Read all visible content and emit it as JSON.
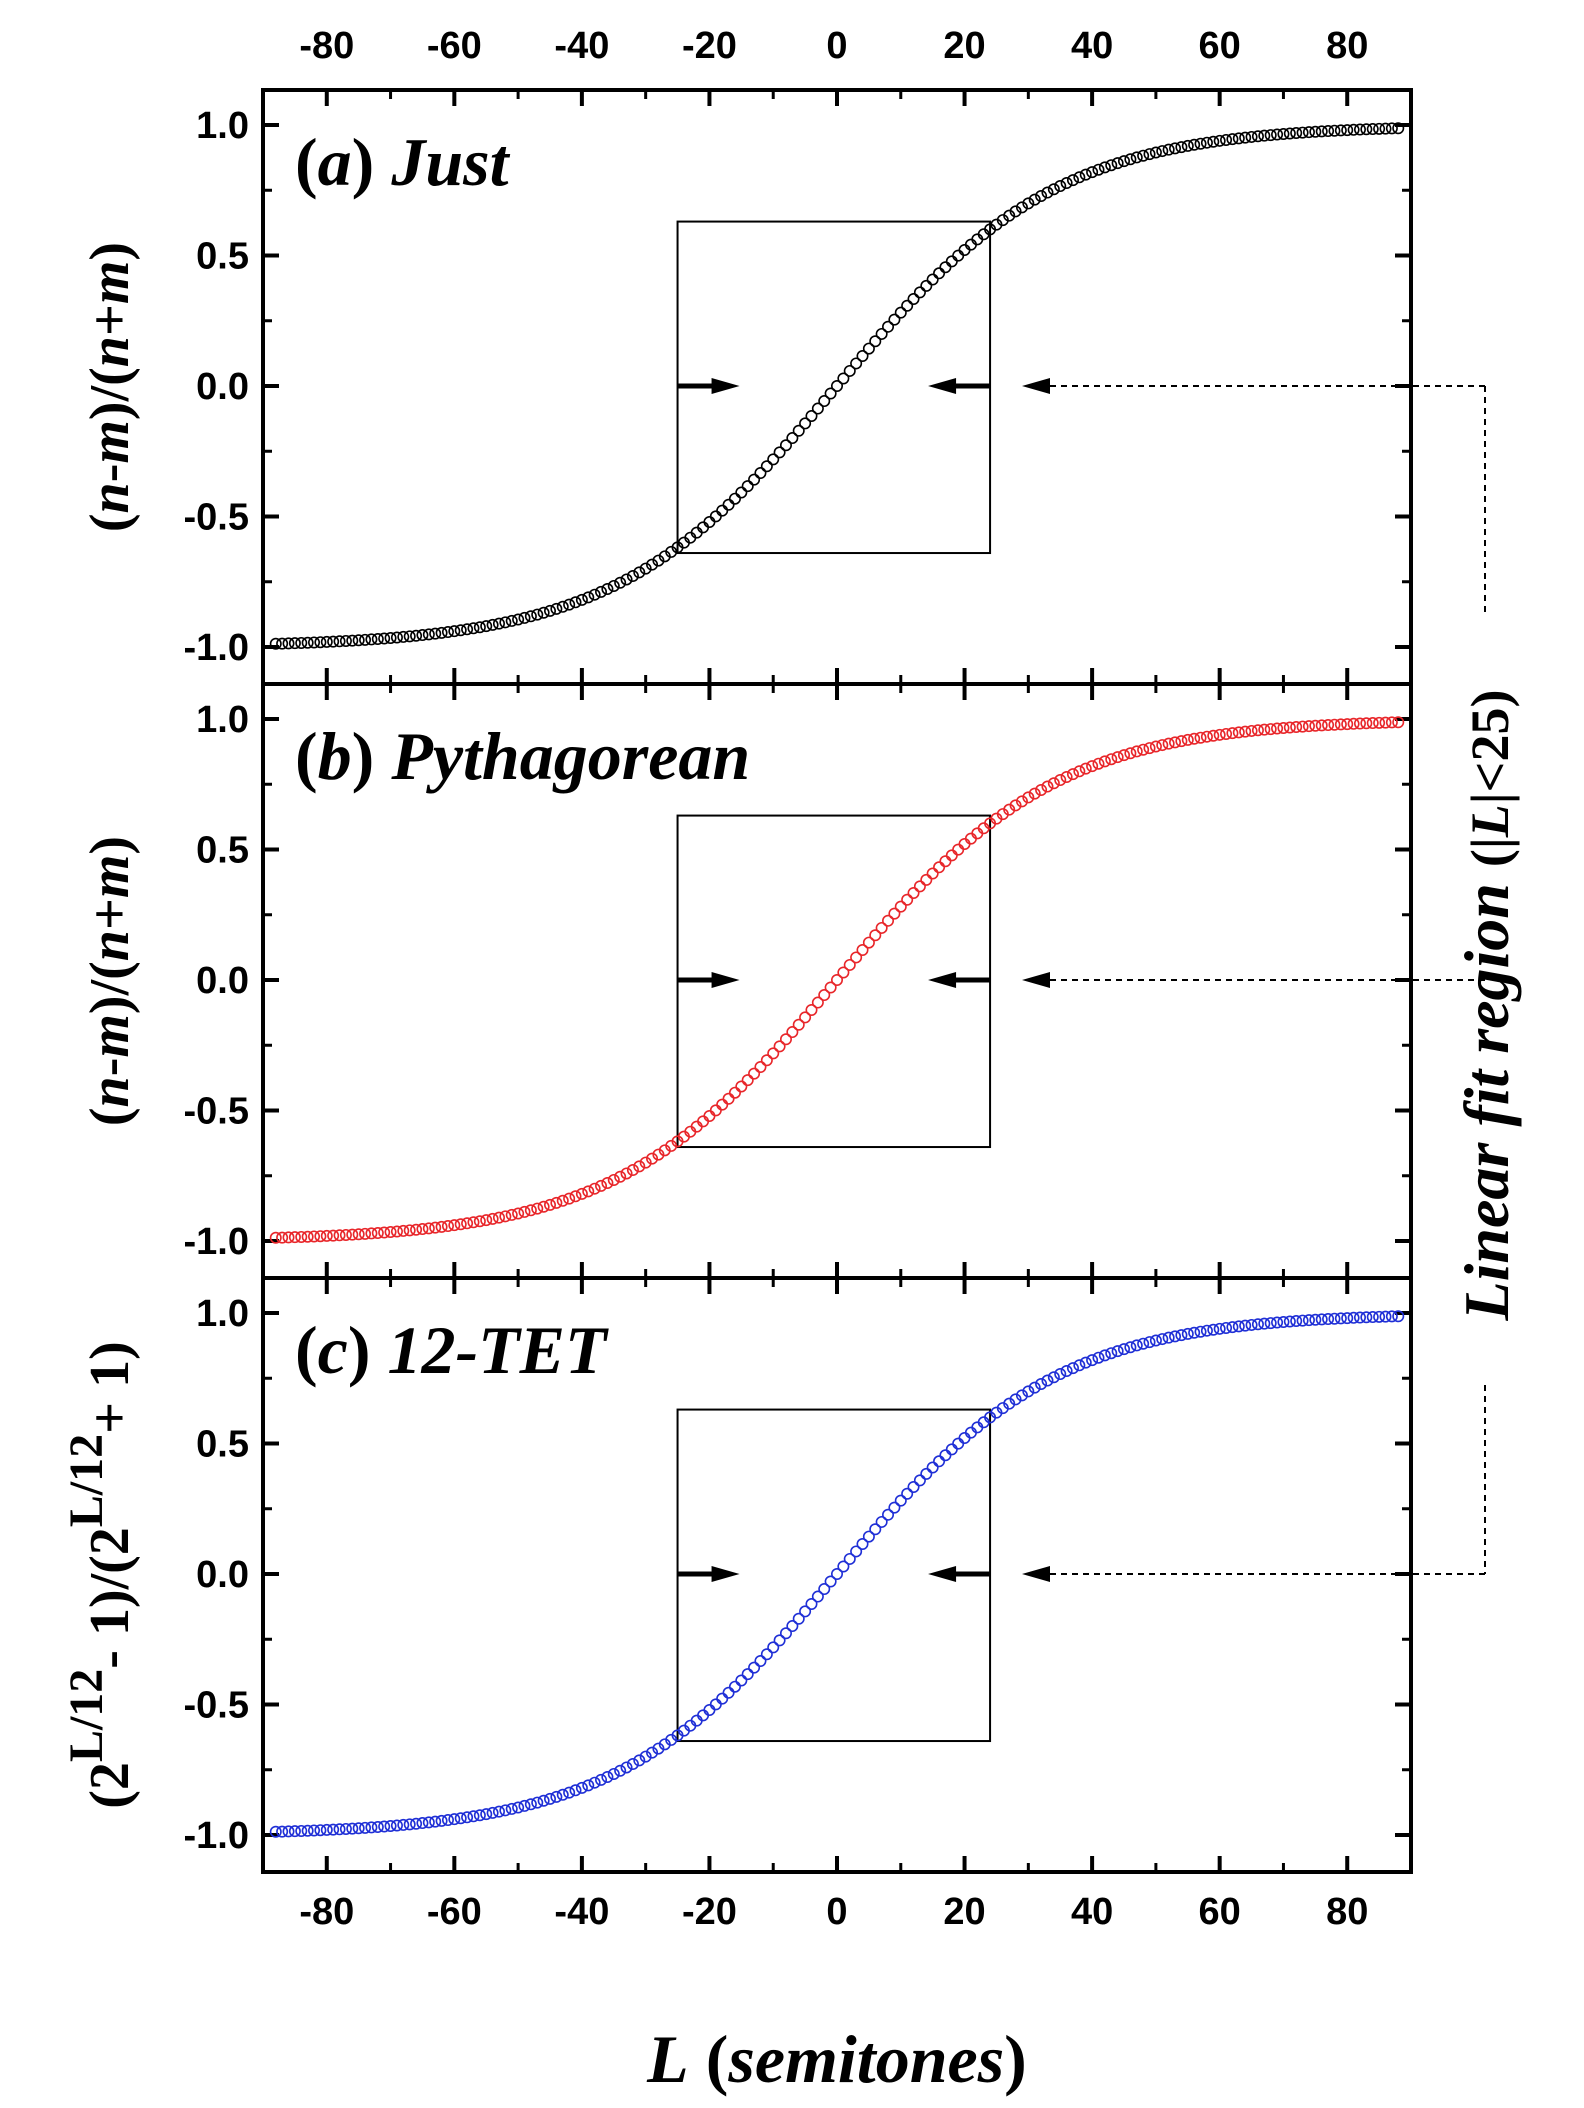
{
  "chart_data": {
    "type": "scatter",
    "x_range": [
      -90,
      90
    ],
    "y_range": [
      -1.05,
      1.1
    ],
    "x_ticks": [
      -80,
      -60,
      -40,
      -20,
      0,
      20,
      40,
      60,
      80
    ],
    "y_ticks": [
      -1.0,
      -0.5,
      0.0,
      0.5,
      1.0
    ],
    "x_tick_labels": [
      "-80",
      "-60",
      "-40",
      "-20",
      "0",
      "20",
      "40",
      "60",
      "80"
    ],
    "y_tick_labels": [
      "-1.0",
      "-0.5",
      "0.0",
      "0.5",
      "1.0"
    ],
    "xlabel_italic": "L",
    "xlabel_rest": " (semitones)",
    "fit_region": {
      "x_min": -25,
      "x_max": 24,
      "y_min": -0.64,
      "y_max": 0.63,
      "label": "Linear fit region",
      "condition_open": "(|",
      "condition_var": "L",
      "condition_close": "|<25)"
    },
    "panels": [
      {
        "label_paren_open": "(",
        "label_letter": "a",
        "label_paren_close": ")",
        "label_name": "Just",
        "ylabel": "(n-m)/(n+m)",
        "color": "#000000",
        "series_name": "Just",
        "x_min": -88,
        "x_max": 88,
        "step": 1
      },
      {
        "label_paren_open": "(",
        "label_letter": "b",
        "label_paren_close": ")",
        "label_name": "Pythagorean",
        "ylabel": "(n-m)/(n+m)",
        "color": "#e8262a",
        "series_name": "Pythagorean",
        "x_min": -88,
        "x_max": 88,
        "step": 1
      },
      {
        "label_paren_open": "(",
        "label_letter": "c",
        "label_paren_close": ")",
        "label_name": "12-TET",
        "ylabel_parts": [
          "(2",
          "L/12",
          "- 1)/(2",
          "L/12",
          "+ 1)"
        ],
        "color": "#1f2fd6",
        "series_name": "12-TET",
        "x_min": -88,
        "x_max": 88,
        "step": 1
      }
    ]
  }
}
